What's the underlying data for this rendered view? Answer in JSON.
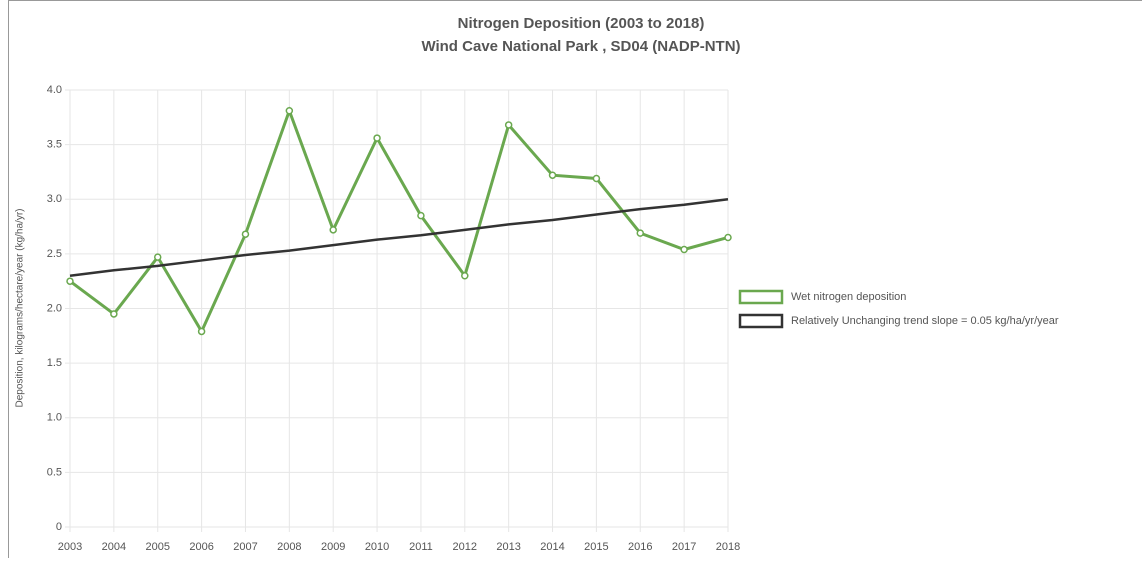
{
  "chart_data": {
    "type": "line",
    "title": "Nitrogen Deposition  (2003 to 2018)",
    "subtitle": "Wind Cave National Park , SD04 (NADP-NTN)",
    "y_label": "Deposition, kilograms/hectare/year (kg/ha/yr)",
    "categories": [
      "2003",
      "2004",
      "2005",
      "2006",
      "2007",
      "2008",
      "2009",
      "2010",
      "2011",
      "2012",
      "2013",
      "2014",
      "2015",
      "2016",
      "2017",
      "2018"
    ],
    "series": [
      {
        "name": "Wet nitrogen deposition",
        "color": "#6aa84f",
        "markers": true,
        "values": [
          2.25,
          1.95,
          2.47,
          1.79,
          2.68,
          3.81,
          2.72,
          3.56,
          2.85,
          2.3,
          3.68,
          3.22,
          3.19,
          2.69,
          2.54,
          2.65
        ]
      },
      {
        "name": "Relatively Unchanging trend slope = 0.05 kg/ha/yr/year",
        "color": "#333333",
        "markers": false,
        "values": [
          2.3,
          2.35,
          2.39,
          2.44,
          2.49,
          2.53,
          2.58,
          2.63,
          2.67,
          2.72,
          2.77,
          2.81,
          2.86,
          2.91,
          2.95,
          3.0
        ]
      }
    ],
    "ylim": [
      0,
      4
    ],
    "yticks": [
      0,
      0.5,
      {
        "value": 1,
        "label": "1.0"
      },
      1.5,
      {
        "value": 2,
        "label": "2.0"
      },
      2.5,
      {
        "value": 3,
        "label": "3.0"
      },
      3.5,
      {
        "value": 4,
        "label": "4.0"
      }
    ],
    "grid": true,
    "legend": "right"
  }
}
